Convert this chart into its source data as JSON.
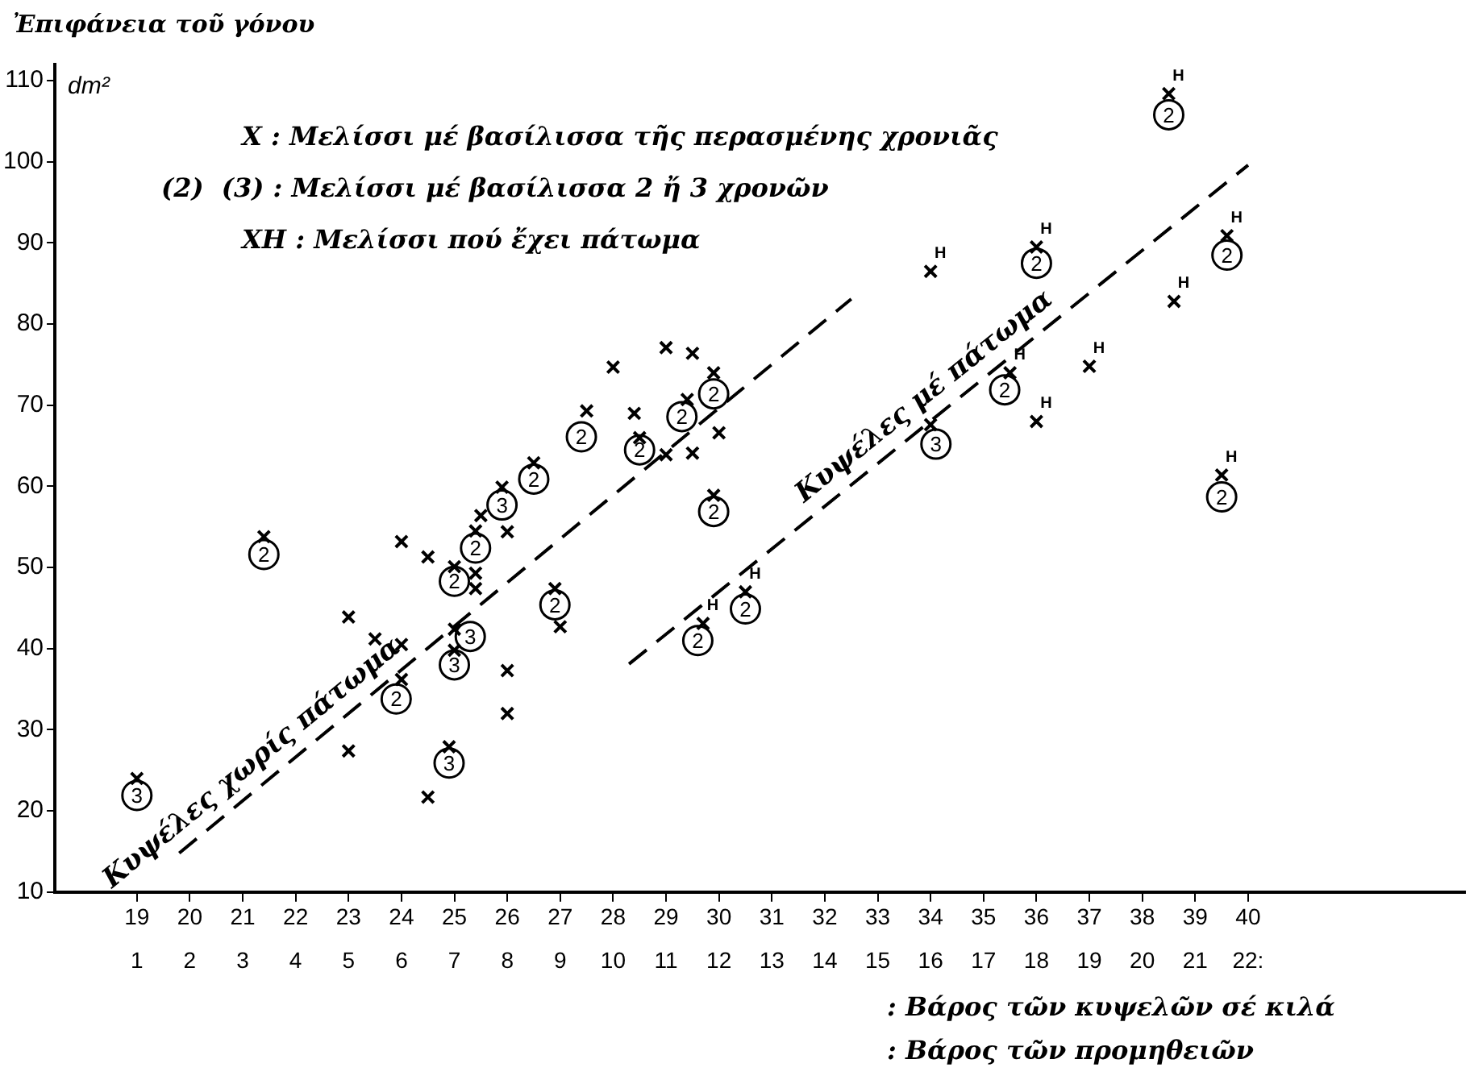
{
  "chart_data": {
    "type": "scatter",
    "ylabel": "Ἐπιφάνεια τοῦ γόνου",
    "xlabel": ": Βάρος τῶν κυψελῶν σέ κιλά",
    "x2label": ": Βάρος τῶν προμηθειῶν",
    "annotations": [
      "dm²",
      "X : Μελίσσι μέ βασίλισσα τῆς περασμένης χρονιᾶς",
      "(2)  (3) : Μελίσσι μέ βασίλισσα 2 ἤ 3 χρονῶν",
      "XH : Μελίσσι πού ἔχει πάτωμα"
    ],
    "xlim": [
      17.45,
      44.1
    ],
    "xticks": [
      19,
      20,
      21,
      22,
      23,
      24,
      25,
      26,
      27,
      28,
      29,
      30,
      31,
      32,
      33,
      34,
      35,
      36,
      37,
      38,
      39,
      40
    ],
    "x2lim": [
      -0.55,
      26.1
    ],
    "x2ticks": [
      1,
      2,
      3,
      4,
      5,
      6,
      7,
      8,
      9,
      10,
      11,
      12,
      13,
      14,
      15,
      16,
      17,
      18,
      19,
      20,
      21,
      {
        "value": 22,
        "label": "22:"
      }
    ],
    "ylim": [
      10,
      112
    ],
    "yticks": [
      10,
      20,
      30,
      40,
      50,
      60,
      70,
      80,
      90,
      100,
      110
    ],
    "legend": false,
    "series": [
      {
        "color": "#000000",
        "marker": "cross",
        "x": [
          19.0,
          21.4,
          23.0,
          23.5,
          24.0,
          24.0,
          24.5,
          23.0,
          24.5,
          24.0,
          25.0,
          25.0,
          25.0,
          24.9,
          25.4,
          25.5,
          25.4,
          25.4,
          25.9,
          26.0,
          26.0,
          26.0,
          26.5,
          26.9,
          27.0,
          29.9,
          28.0,
          29.0,
          29.5,
          27.5,
          28.4,
          28.5,
          29.0,
          29.5,
          29.4,
          29.9,
          30.0,
          34.0
        ],
        "values": [
          24.0,
          53.8,
          43.9,
          41.2,
          40.5,
          53.2,
          51.3,
          27.4,
          21.7,
          36.2,
          50.1,
          42.4,
          39.8,
          27.9,
          54.5,
          56.4,
          49.3,
          47.4,
          59.9,
          54.4,
          37.3,
          32.0,
          62.9,
          47.4,
          42.7,
          58.9,
          74.7,
          77.1,
          76.4,
          69.3,
          69.0,
          66.0,
          63.9,
          64.1,
          70.7,
          74.0,
          66.6,
          67.6
        ]
      },
      {
        "name": "H",
        "color": "#000000",
        "marker": "cross",
        "x": [
          29.7,
          30.5,
          39.5,
          38.5,
          39.6,
          38.6,
          37.0,
          36.0,
          35.5,
          36.0,
          34.0
        ],
        "values": [
          43.1,
          47.0,
          61.4,
          108.4,
          90.9,
          82.8,
          74.8,
          89.5,
          74.0,
          68.0,
          86.5
        ]
      },
      {
        "name": "2",
        "color": "#000000",
        "marker": "circle",
        "x": [
          21.4,
          23.9,
          25.0,
          25.4,
          26.5,
          26.9,
          29.9,
          29.6,
          30.5,
          39.5,
          27.4,
          28.5,
          29.3,
          29.9,
          38.5,
          39.6,
          36.0,
          35.4
        ],
        "values": [
          51.6,
          33.8,
          48.3,
          52.4,
          60.9,
          45.4,
          56.9,
          41.0,
          44.9,
          58.7,
          66.1,
          64.5,
          68.6,
          71.4,
          105.8,
          88.5,
          87.5,
          71.9
        ]
      },
      {
        "name": "3",
        "color": "#000000",
        "marker": "circle",
        "x": [
          19.0,
          25.3,
          25.0,
          24.9,
          25.9,
          34.1
        ],
        "values": [
          21.9,
          41.5,
          38.0,
          25.9,
          57.7,
          65.2
        ]
      },
      {
        "type": "line",
        "name": "Κυψέλες χωρίς πάτωμα",
        "color": "#000000",
        "marker": "none",
        "line_style": "dashed",
        "x": [
          19.8,
          32.5
        ],
        "values": [
          14.8,
          83.1
        ]
      },
      {
        "type": "line",
        "name": "Κυψέλες μέ πάτωμα",
        "color": "#000000",
        "marker": "none",
        "line_style": "dashed",
        "x": [
          28.3,
          40.0
        ],
        "values": [
          38.1,
          99.6
        ]
      }
    ]
  }
}
